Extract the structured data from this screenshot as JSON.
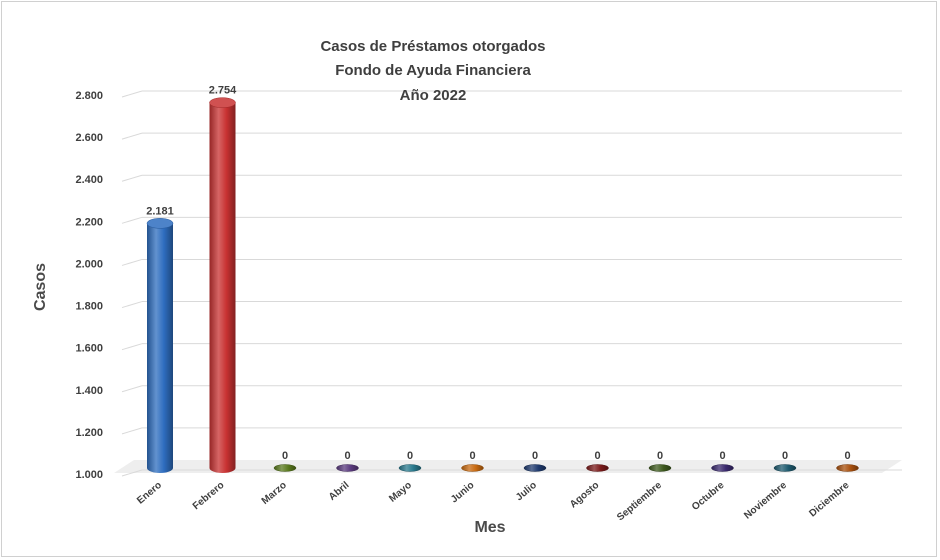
{
  "chart_data": {
    "type": "bar",
    "title_lines": [
      "Casos de Préstamos otorgados",
      "Fondo de Ayuda Financiera",
      "Año 2022"
    ],
    "xlabel": "Mes",
    "ylabel": "Casos",
    "ylim": [
      1000,
      2800
    ],
    "yticks": [
      "1.000",
      "1.200",
      "1.400",
      "1.600",
      "1.800",
      "2.000",
      "2.200",
      "2.400",
      "2.600",
      "2.800"
    ],
    "categories": [
      "Enero",
      "Febrero",
      "Marzo",
      "Abril",
      "Mayo",
      "Junio",
      "Julio",
      "Agosto",
      "Septiembre",
      "Octubre",
      "Noviembre",
      "Diciembre"
    ],
    "values": [
      2181,
      2754,
      0,
      0,
      0,
      0,
      0,
      0,
      0,
      0,
      0,
      0
    ],
    "data_labels": [
      "2.181",
      "2.754",
      "0",
      "0",
      "0",
      "0",
      "0",
      "0",
      "0",
      "0",
      "0",
      "0"
    ],
    "colors": [
      "#2e6dbf",
      "#c83232",
      "#5a7a1e",
      "#5a3a7e",
      "#2a7a8e",
      "#c86a10",
      "#1f3a6e",
      "#7a1a1a",
      "#3e5a1e",
      "#3a2a6e",
      "#1e5a6e",
      "#a8500e"
    ],
    "grid": true,
    "legend": "none"
  }
}
